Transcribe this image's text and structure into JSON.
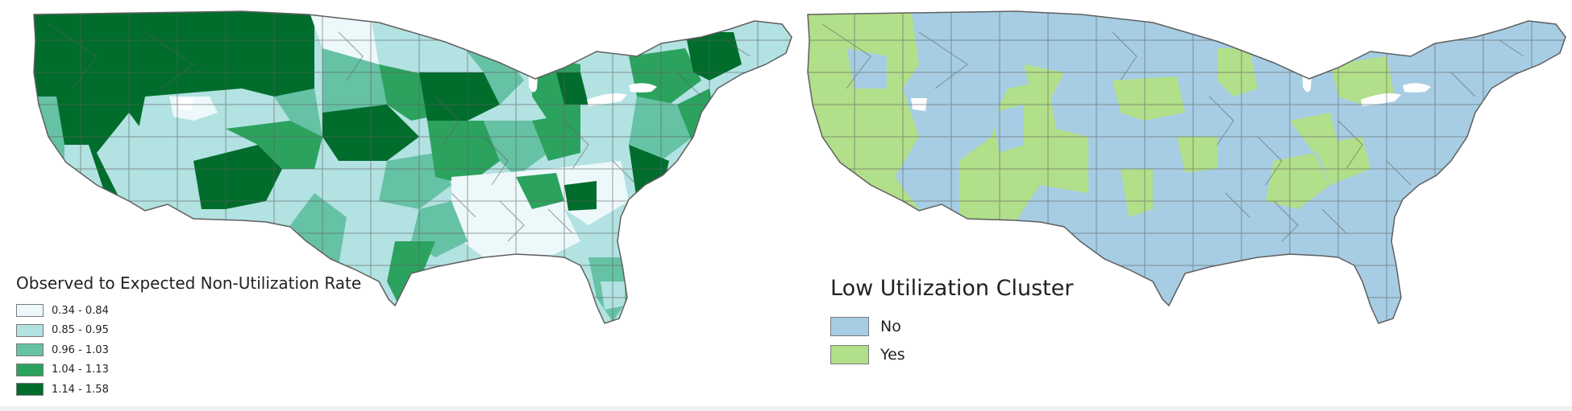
{
  "left_map": {
    "legend_title": "Observed to Expected Non-Utilization Rate",
    "classes": [
      {
        "label": "0.34 - 0.84",
        "color": "#edf8fb"
      },
      {
        "label": "0.85 - 0.95",
        "color": "#b2e2e2"
      },
      {
        "label": "0.96 - 1.03",
        "color": "#66c2a4"
      },
      {
        "label": "1.04 - 1.13",
        "color": "#2ca25f"
      },
      {
        "label": "1.14 - 1.58",
        "color": "#006d2c"
      }
    ]
  },
  "right_map": {
    "legend_title": "Low Utilization Cluster",
    "classes": [
      {
        "label": "No",
        "color": "#a6cde3"
      },
      {
        "label": "Yes",
        "color": "#b2df8a"
      }
    ]
  },
  "colors": {
    "boundary": "#5f5f5f",
    "lake": "#ffffff"
  }
}
